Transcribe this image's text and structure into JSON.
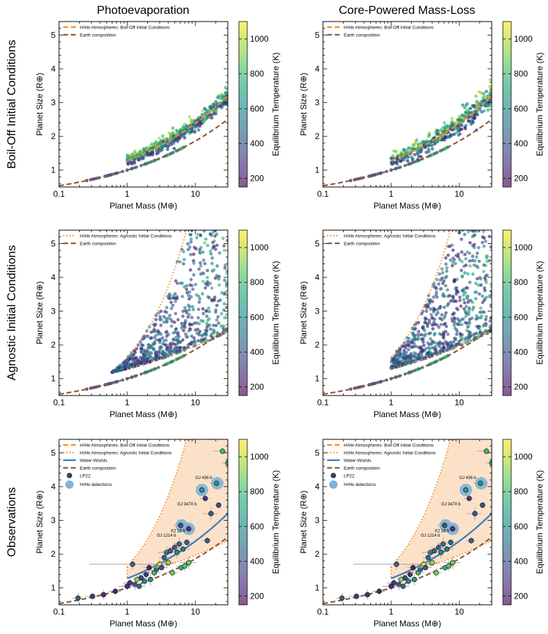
{
  "chart_data": {
    "type": "scatter",
    "column_titles": [
      "Photoevaporation",
      "Core-Powered Mass-Loss"
    ],
    "row_titles": [
      "Boil-Off Initial Conditions",
      "Agnostic Initial Conditions",
      "Observations"
    ],
    "xlabel": "Planet Mass (M⊕)",
    "ylabel": "Planet Size (R⊕)",
    "xscale": "log",
    "xlim": [
      0.1,
      30
    ],
    "ylim": [
      0.5,
      5.4
    ],
    "xticks": [
      0.1,
      1,
      10
    ],
    "xtick_labels": [
      "0.1",
      "1",
      "10"
    ],
    "yticks": [
      1,
      2,
      3,
      4,
      5
    ],
    "ytick_labels": [
      "1",
      "2",
      "3",
      "4",
      "5"
    ],
    "colorbar": {
      "label": "Equilibrium Temperature (K)",
      "range": [
        150,
        1100
      ],
      "ticks": [
        200,
        400,
        600,
        800,
        1000
      ],
      "tick_labels": [
        "200",
        "400",
        "600",
        "800",
        "1000"
      ],
      "colormap": "viridis"
    },
    "legend_labels": {
      "boiloff": "H/He Atmospheres: Boil-Off Initial Conditions",
      "agnostic": "H/He Atmospheres: Agnostic Initial Conditions",
      "water": "Water-Worlds",
      "earth": "Earth composition",
      "lp22": "LP22",
      "hhe": "H/He detections"
    },
    "series_colors": {
      "boiloff": "#f58a24",
      "agnostic": "#f58a24",
      "water": "#2e7fc1",
      "earth": "#8c5a3c",
      "hhe": "#7fb4dc",
      "band": "#fbdcc0"
    },
    "panels_legends": [
      [
        "boiloff",
        "earth"
      ],
      [
        "boiloff",
        "earth"
      ],
      [
        "agnostic",
        "earth"
      ],
      [
        "agnostic",
        "earth"
      ],
      [
        "boiloff",
        "agnostic",
        "water",
        "earth",
        "lp22",
        "hhe"
      ],
      [
        "boiloff",
        "agnostic",
        "water",
        "earth",
        "lp22",
        "hhe"
      ]
    ],
    "annotations": [
      {
        "label": "GJ 436 b",
        "mass": 21.4,
        "radius": 4.19
      },
      {
        "label": "GJ 3470 b",
        "mass": 12.6,
        "radius": 3.4
      },
      {
        "label": "K2 18 b",
        "mass": 8.6,
        "radius": 2.61
      },
      {
        "label": "GJ 1214 b",
        "mass": 6.3,
        "radius": 2.48
      }
    ],
    "hhe_detections": [
      {
        "mass": 6.3,
        "radius": 2.85
      },
      {
        "mass": 8.0,
        "radius": 2.75
      },
      {
        "mass": 12.5,
        "radius": 3.9
      },
      {
        "mass": 21.0,
        "radius": 4.1
      }
    ],
    "lp22": [
      {
        "mass": 0.19,
        "radius": 0.7,
        "teq": 450
      },
      {
        "mass": 0.31,
        "radius": 0.75,
        "teq": 300
      },
      {
        "mass": 0.45,
        "radius": 0.8,
        "teq": 280
      },
      {
        "mass": 0.67,
        "radius": 0.9,
        "teq": 260
      },
      {
        "mass": 1.0,
        "radius": 1.05,
        "teq": 280
      },
      {
        "mass": 1.1,
        "radius": 1.15,
        "teq": 300
      },
      {
        "mass": 1.2,
        "radius": 1.7,
        "teq": 450
      },
      {
        "mass": 1.3,
        "radius": 1.1,
        "teq": 400
      },
      {
        "mass": 1.4,
        "radius": 1.25,
        "teq": 950
      },
      {
        "mass": 1.5,
        "radius": 1.05,
        "teq": 500
      },
      {
        "mass": 1.6,
        "radius": 1.3,
        "teq": 350
      },
      {
        "mass": 1.8,
        "radius": 1.2,
        "teq": 600
      },
      {
        "mass": 1.9,
        "radius": 1.4,
        "teq": 300
      },
      {
        "mass": 2.1,
        "radius": 1.6,
        "teq": 250
      },
      {
        "mass": 2.2,
        "radius": 1.25,
        "teq": 650
      },
      {
        "mass": 2.5,
        "radius": 1.45,
        "teq": 800
      },
      {
        "mass": 2.7,
        "radius": 1.55,
        "teq": 500
      },
      {
        "mass": 3.0,
        "radius": 1.7,
        "teq": 1050
      },
      {
        "mass": 3.2,
        "radius": 1.6,
        "teq": 420
      },
      {
        "mass": 3.5,
        "radius": 1.9,
        "teq": 480
      },
      {
        "mass": 3.8,
        "radius": 2.05,
        "teq": 550
      },
      {
        "mass": 4.0,
        "radius": 1.75,
        "teq": 950
      },
      {
        "mass": 4.3,
        "radius": 2.1,
        "teq": 460
      },
      {
        "mass": 4.6,
        "radius": 1.45,
        "teq": 900
      },
      {
        "mass": 5.0,
        "radius": 2.2,
        "teq": 420
      },
      {
        "mass": 5.4,
        "radius": 2.05,
        "teq": 600
      },
      {
        "mass": 5.8,
        "radius": 2.3,
        "teq": 500
      },
      {
        "mass": 6.2,
        "radius": 1.6,
        "teq": 750
      },
      {
        "mass": 6.6,
        "radius": 2.15,
        "teq": 550
      },
      {
        "mass": 7.0,
        "radius": 1.65,
        "teq": 850
      },
      {
        "mass": 7.5,
        "radius": 2.35,
        "teq": 450
      },
      {
        "mass": 8.0,
        "radius": 1.75,
        "teq": 900
      },
      {
        "mass": 6.1,
        "radius": 2.85,
        "teq": 380
      },
      {
        "mass": 8.0,
        "radius": 2.75,
        "teq": 300
      },
      {
        "mass": 12.5,
        "radius": 3.9,
        "teq": 650
      },
      {
        "mass": 14.0,
        "radius": 3.65,
        "teq": 300
      },
      {
        "mass": 17.0,
        "radius": 3.2,
        "teq": 420
      },
      {
        "mass": 20.5,
        "radius": 4.1,
        "teq": 650
      },
      {
        "mass": 22.0,
        "radius": 3.45,
        "teq": 380
      },
      {
        "mass": 25.0,
        "radius": 5.05,
        "teq": 800
      },
      {
        "mass": 30.0,
        "radius": 4.7,
        "teq": 700
      },
      {
        "mass": 15.0,
        "radius": 2.4,
        "teq": 450
      }
    ]
  }
}
